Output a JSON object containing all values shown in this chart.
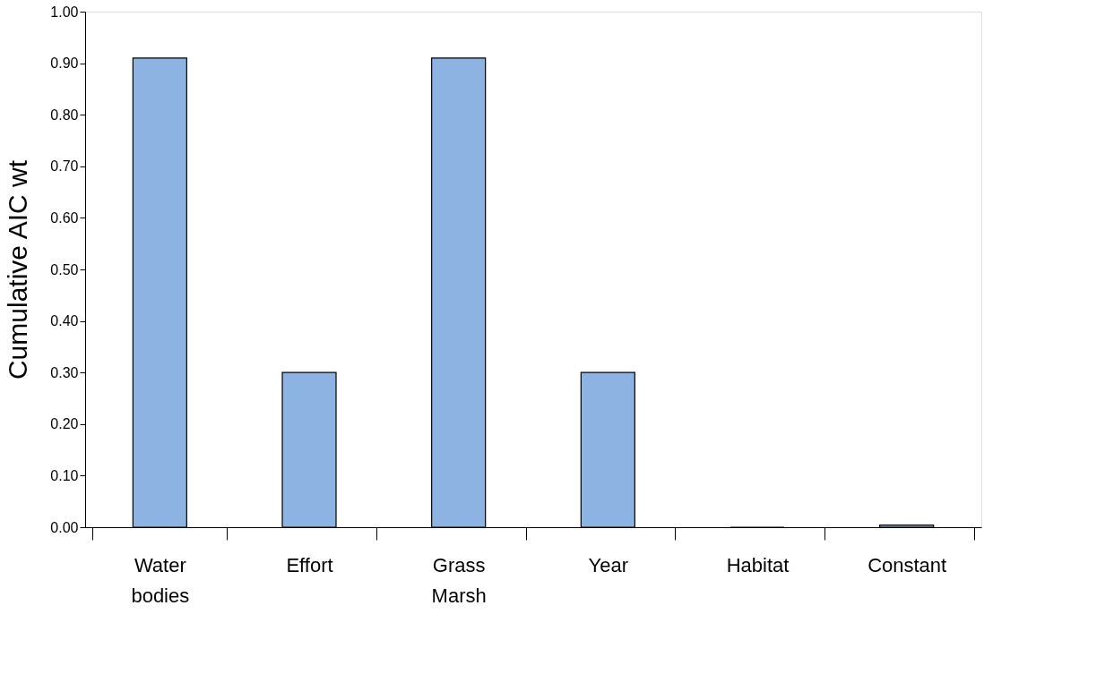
{
  "chart_data": {
    "type": "bar",
    "ylabel": "Cumulative AIC wt",
    "categories": [
      "Water bodies",
      "Effort",
      "Grass Marsh",
      "Year",
      "Habitat",
      "Constant"
    ],
    "values": [
      0.91,
      0.3,
      0.91,
      0.3,
      0,
      0.004
    ],
    "color": "#8db3e2",
    "ylim": [
      0,
      1.0
    ],
    "yticks": [
      {
        "value": 0,
        "label": "0.00"
      },
      {
        "value": 0.1,
        "label": "0.10"
      },
      {
        "value": 0.2,
        "label": "0.20"
      },
      {
        "value": 0.3,
        "label": "0.30"
      },
      {
        "value": 0.4,
        "label": "0.40"
      },
      {
        "value": 0.5,
        "label": "0.50"
      },
      {
        "value": 0.6,
        "label": "0.60"
      },
      {
        "value": 0.7,
        "label": "0.70"
      },
      {
        "value": 0.8,
        "label": "0.80"
      },
      {
        "value": 0.9,
        "label": "0.90"
      },
      {
        "value": 1.0,
        "label": "1.00"
      }
    ],
    "grid": false
  }
}
